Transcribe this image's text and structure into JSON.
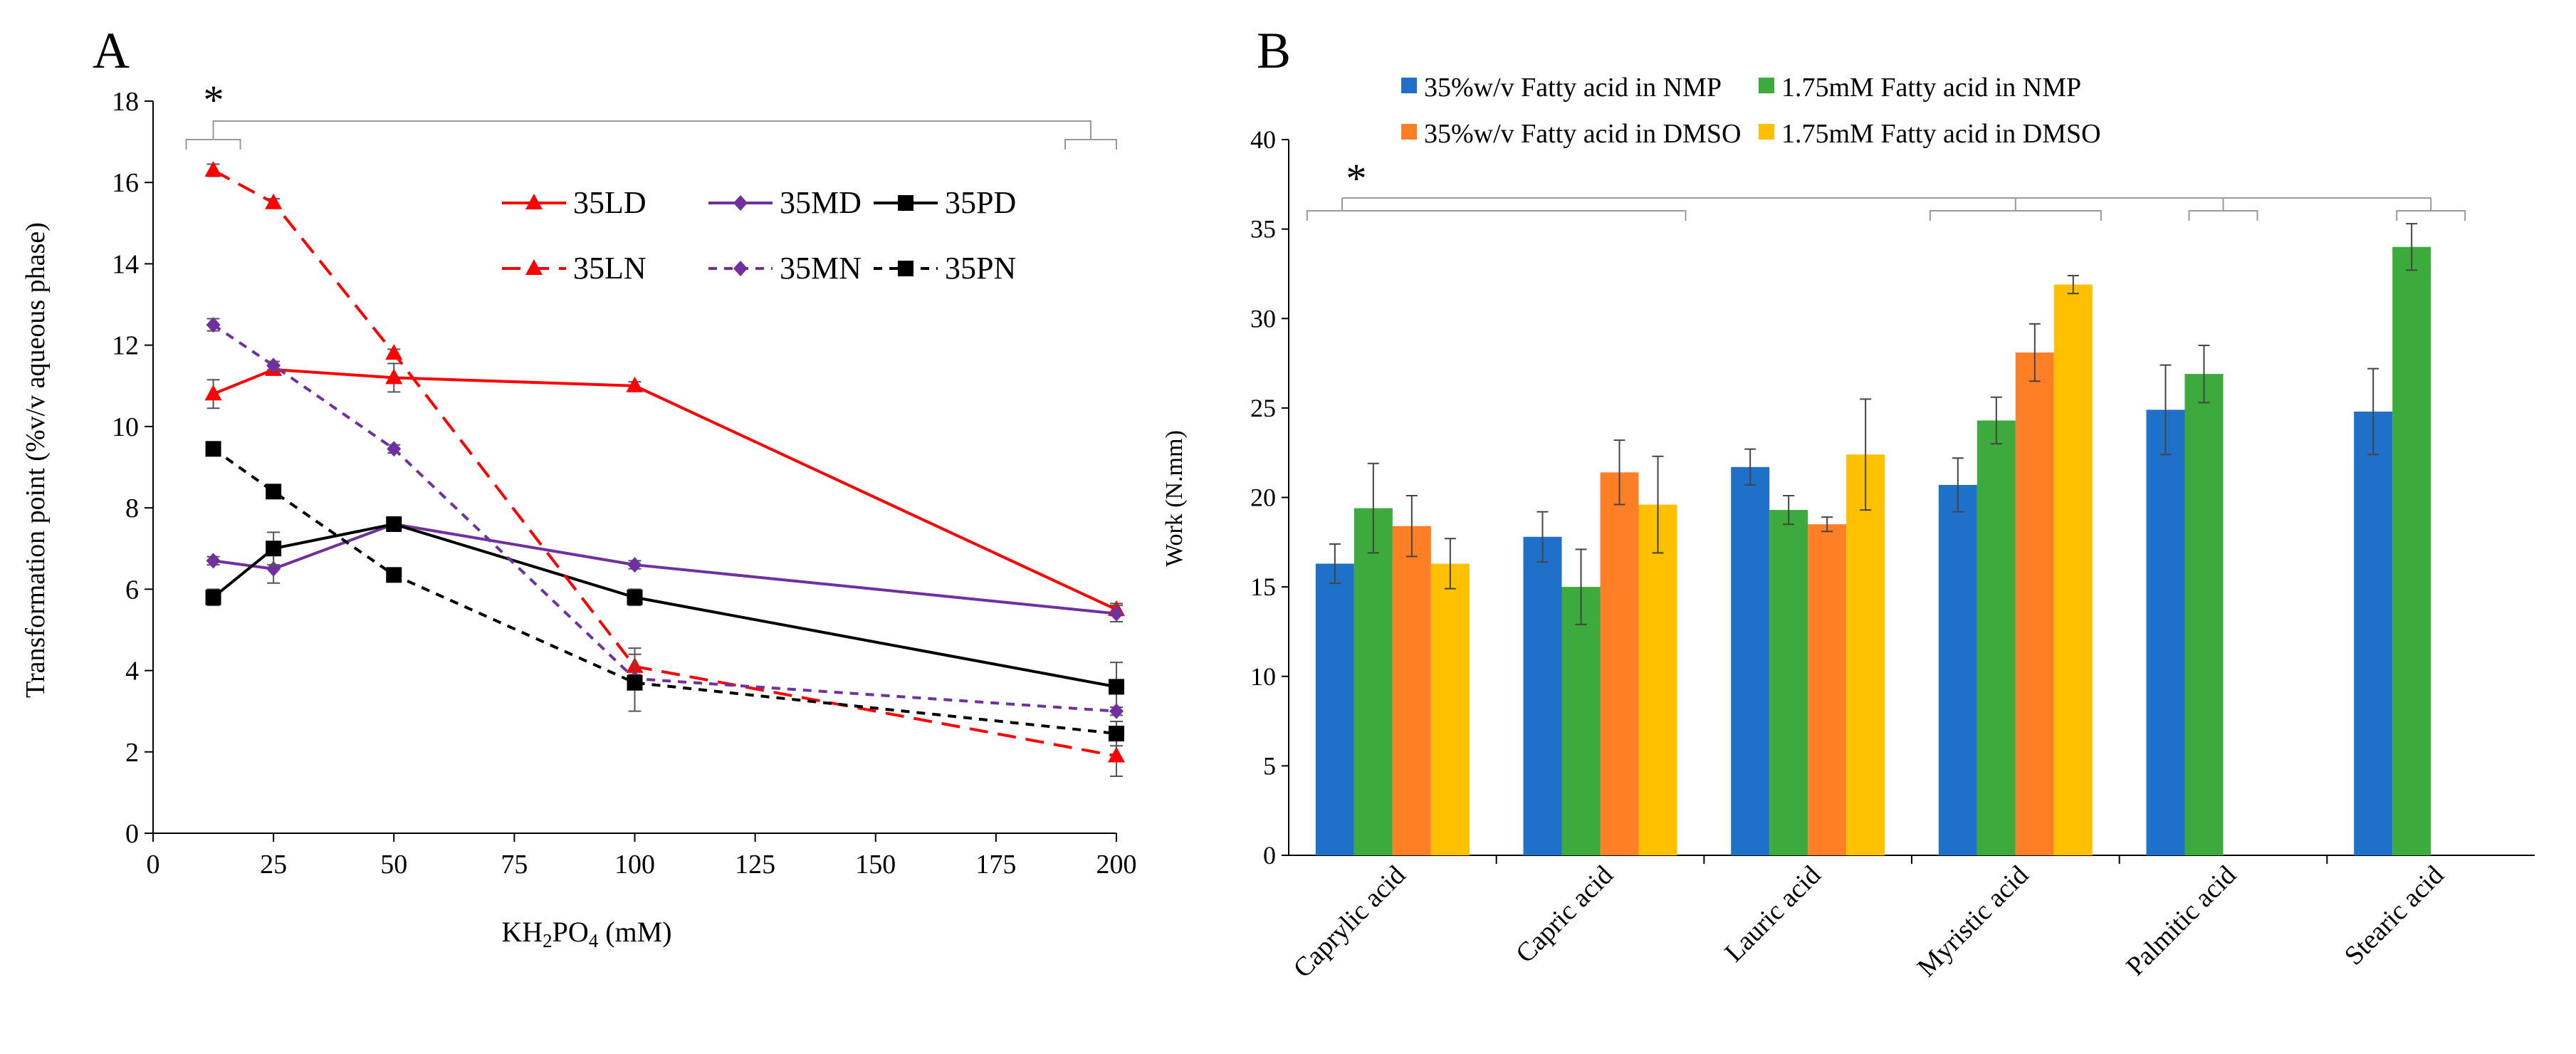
{
  "chart_data": [
    {
      "panel_label": "A",
      "type": "line",
      "xlabel_main": "KH",
      "xlabel_sub1": "2",
      "xlabel_mid": "PO",
      "xlabel_sub2": "4",
      "xlabel_unit": " (mM)",
      "ylabel": "Transformation point (%v/v aqueous phase)",
      "xlim": [
        0,
        200
      ],
      "ylim": [
        0,
        18
      ],
      "xticks": [
        0,
        25,
        50,
        75,
        100,
        125,
        150,
        175,
        200
      ],
      "yticks": [
        0,
        2,
        4,
        6,
        8,
        10,
        12,
        14,
        16,
        18
      ],
      "significance_marker": "*",
      "x": [
        12.5,
        25,
        50,
        100,
        200
      ],
      "series": [
        {
          "name": "35LD",
          "color": "#ff0000",
          "marker": "triangle",
          "dashed": false,
          "values": [
            10.8,
            11.4,
            11.2,
            11.0,
            5.5
          ],
          "errors": [
            0.35,
            0.1,
            0.35,
            0.1,
            0.15
          ]
        },
        {
          "name": "35MD",
          "color": "#7030a0",
          "marker": "diamond",
          "dashed": false,
          "values": [
            6.7,
            6.5,
            7.6,
            6.6,
            5.4
          ],
          "errors": [
            0.1,
            0.35,
            0.15,
            0.1,
            0.2
          ]
        },
        {
          "name": "35PD",
          "color": "#000000",
          "marker": "square",
          "dashed": false,
          "values": [
            5.8,
            7.0,
            7.6,
            5.8,
            3.6
          ],
          "errors": [
            0.2,
            0.4,
            0.15,
            0.2,
            0.6
          ]
        },
        {
          "name": "35LN",
          "color": "#ff0000",
          "marker": "triangle",
          "dashed": true,
          "values": [
            16.3,
            15.5,
            11.8,
            4.1,
            1.9
          ],
          "errors": [
            0.15,
            0.1,
            0.1,
            0.45,
            0.5
          ]
        },
        {
          "name": "35MN",
          "color": "#7030a0",
          "marker": "diamond",
          "dashed": true,
          "values": [
            12.5,
            11.5,
            9.45,
            3.8,
            3.0
          ],
          "errors": [
            0.15,
            0.1,
            0.1,
            0.1,
            0.1
          ]
        },
        {
          "name": "35PN",
          "color": "#000000",
          "marker": "square",
          "dashed": true,
          "values": [
            9.45,
            8.4,
            6.35,
            3.7,
            2.45
          ],
          "errors": [
            0.1,
            0.1,
            0.1,
            0.7,
            0.3
          ]
        }
      ]
    },
    {
      "panel_label": "B",
      "type": "bar",
      "ylabel": "Work (N.mm)",
      "xlabel": "",
      "ylim": [
        0,
        40
      ],
      "yticks": [
        0,
        5,
        10,
        15,
        20,
        25,
        30,
        35,
        40
      ],
      "significance_marker": "*",
      "categories": [
        "Caprylic acid",
        "Capric  acid",
        "Lauric acid",
        "Myristic acid",
        "Palmitic acid",
        "Stearic acid"
      ],
      "series": [
        {
          "name": "35%w/v Fatty acid in NMP",
          "color": "#1f70c8",
          "values": [
            16.3,
            17.8,
            21.7,
            20.7,
            24.9,
            24.8
          ],
          "errors": [
            1.1,
            1.4,
            1.0,
            1.5,
            2.5,
            2.4
          ]
        },
        {
          "name": "1.75mM Fatty acid in NMP",
          "color": "#3caa3c",
          "values": [
            19.4,
            15.0,
            19.3,
            24.3,
            26.9,
            34.0
          ],
          "errors": [
            2.5,
            2.1,
            0.8,
            1.3,
            1.6,
            1.3
          ]
        },
        {
          "name": "35%w/v Fatty acid in DMSO",
          "color": "#ff7f27",
          "values": [
            18.4,
            21.4,
            18.5,
            28.1,
            null,
            null
          ],
          "errors": [
            1.7,
            1.8,
            0.4,
            1.6,
            null,
            null
          ]
        },
        {
          "name": "1.75mM Fatty acid in DMSO",
          "color": "#ffc000",
          "values": [
            16.3,
            19.6,
            22.4,
            31.9,
            null,
            null
          ],
          "errors": [
            1.4,
            2.7,
            3.1,
            0.5,
            null,
            null
          ]
        }
      ]
    }
  ]
}
